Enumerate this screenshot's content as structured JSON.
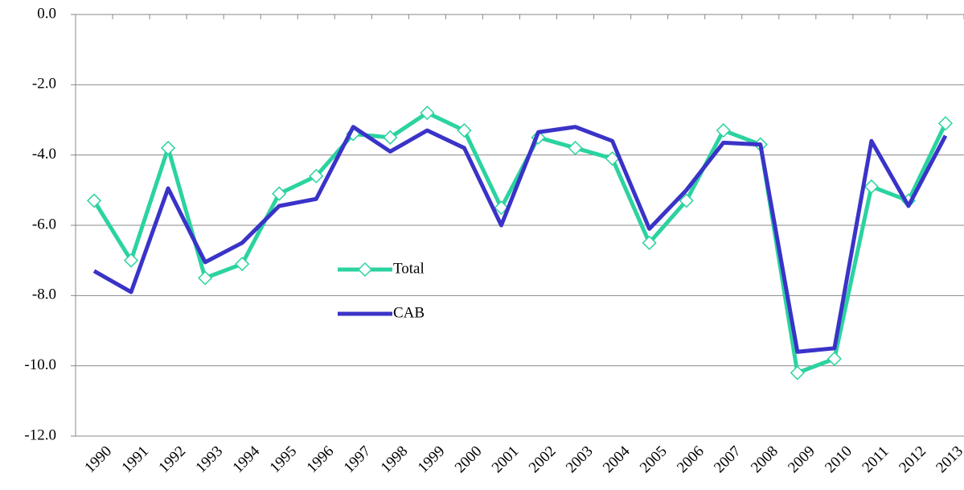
{
  "chart_data": {
    "type": "line",
    "categories": [
      "1990",
      "1991",
      "1992",
      "1993",
      "1994",
      "1995",
      "1996",
      "1997",
      "1998",
      "1999",
      "2000",
      "2001",
      "2002",
      "2003",
      "2004",
      "2005",
      "2006",
      "2007",
      "2008",
      "2009",
      "2010",
      "2011",
      "2012",
      "2013"
    ],
    "series": [
      {
        "name": "Total",
        "color": "#2bd3a0",
        "marker": "diamond",
        "values": [
          -5.3,
          -7.0,
          -3.8,
          -7.5,
          -7.1,
          -5.1,
          -4.6,
          -3.4,
          -3.5,
          -2.8,
          -3.3,
          -5.5,
          -3.5,
          -3.8,
          -4.1,
          -6.5,
          -5.3,
          -3.3,
          -3.7,
          -10.2,
          -9.8,
          -4.9,
          -5.3,
          -3.1
        ]
      },
      {
        "name": "CAB",
        "color": "#3a33c8",
        "values": [
          -7.3,
          -7.9,
          -4.95,
          -7.05,
          -6.5,
          -5.45,
          -5.25,
          -3.2,
          -3.9,
          -3.3,
          -3.8,
          -6.0,
          -3.35,
          -3.2,
          -3.6,
          -6.1,
          -5.0,
          -3.65,
          -3.7,
          -9.6,
          -9.5,
          -3.6,
          -5.45,
          -3.45
        ]
      }
    ],
    "ylim": [
      -12,
      0
    ],
    "yticks": [
      {
        "value": -12,
        "label": "-12.0"
      },
      {
        "value": -10,
        "label": "-10.0"
      },
      {
        "value": -8,
        "label": "-8.0"
      },
      {
        "value": -6,
        "label": "-6.0"
      },
      {
        "value": -4,
        "label": "-4.0"
      },
      {
        "value": -2,
        "label": "-2.0"
      },
      {
        "value": 0,
        "label": "0.0"
      }
    ],
    "grid": true
  }
}
